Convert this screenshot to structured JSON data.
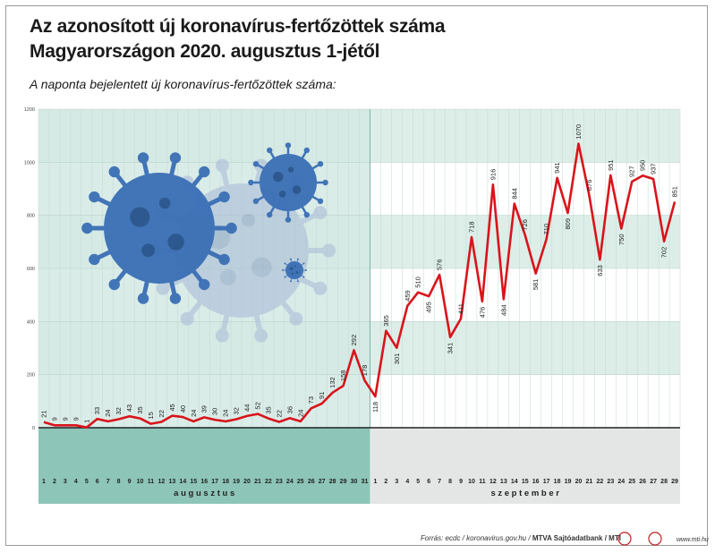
{
  "header": {
    "title_line1": "Az azonosított új koronavírus-fertőzöttek száma",
    "title_line2": "Magyarországon 2020. augusztus 1-jétől",
    "subtitle": "A naponta bejelentett új koronavírus-fertőzöttek száma:"
  },
  "footer": {
    "source": "Forrás: ecdc / koronavirus.gov.hu /",
    "agency": "MTVA Sajtóadatbank / MTI",
    "url": "www.mti.hu"
  },
  "colors": {
    "line": "#d9141b",
    "august_band": "#d3e9e4",
    "august_footer": "#8dc5b8",
    "september_band": "#ddeee9",
    "september_footer": "#e4e6e6"
  },
  "decoration": "virus-illustration",
  "chart_data": {
    "type": "line",
    "ylim": [
      0,
      1200
    ],
    "yticks": [
      0,
      200,
      400,
      600,
      800,
      1000,
      1200
    ],
    "month_labels": [
      "a u g u s z t u s",
      "s z e p t e m b e r"
    ],
    "august_days": [
      "1",
      "2",
      "3",
      "4",
      "5",
      "6",
      "7",
      "8",
      "9",
      "10",
      "11",
      "12",
      "13",
      "14",
      "15",
      "16",
      "17",
      "18",
      "19",
      "20",
      "21",
      "22",
      "23",
      "24",
      "25",
      "26",
      "27",
      "28",
      "29",
      "30",
      "31"
    ],
    "september_days": [
      "1",
      "2",
      "3",
      "4",
      "5",
      "6",
      "7",
      "8",
      "9",
      "10",
      "11",
      "12",
      "13",
      "14",
      "15",
      "16",
      "17",
      "18",
      "19",
      "20",
      "21",
      "22",
      "23",
      "24",
      "25",
      "26",
      "27",
      "28",
      "29"
    ],
    "values": [
      21,
      9,
      9,
      9,
      1,
      33,
      24,
      32,
      43,
      35,
      15,
      22,
      45,
      40,
      24,
      39,
      30,
      24,
      32,
      44,
      52,
      35,
      22,
      36,
      24,
      73,
      91,
      132,
      158,
      292,
      178,
      118,
      365,
      301,
      459,
      510,
      495,
      576,
      341,
      411,
      718,
      476,
      916,
      484,
      844,
      726,
      581,
      710,
      941,
      809,
      1070,
      876,
      633,
      951,
      750,
      927,
      950,
      937,
      702,
      851
    ],
    "series": [
      {
        "name": "",
        "values": []
      }
    ]
  }
}
